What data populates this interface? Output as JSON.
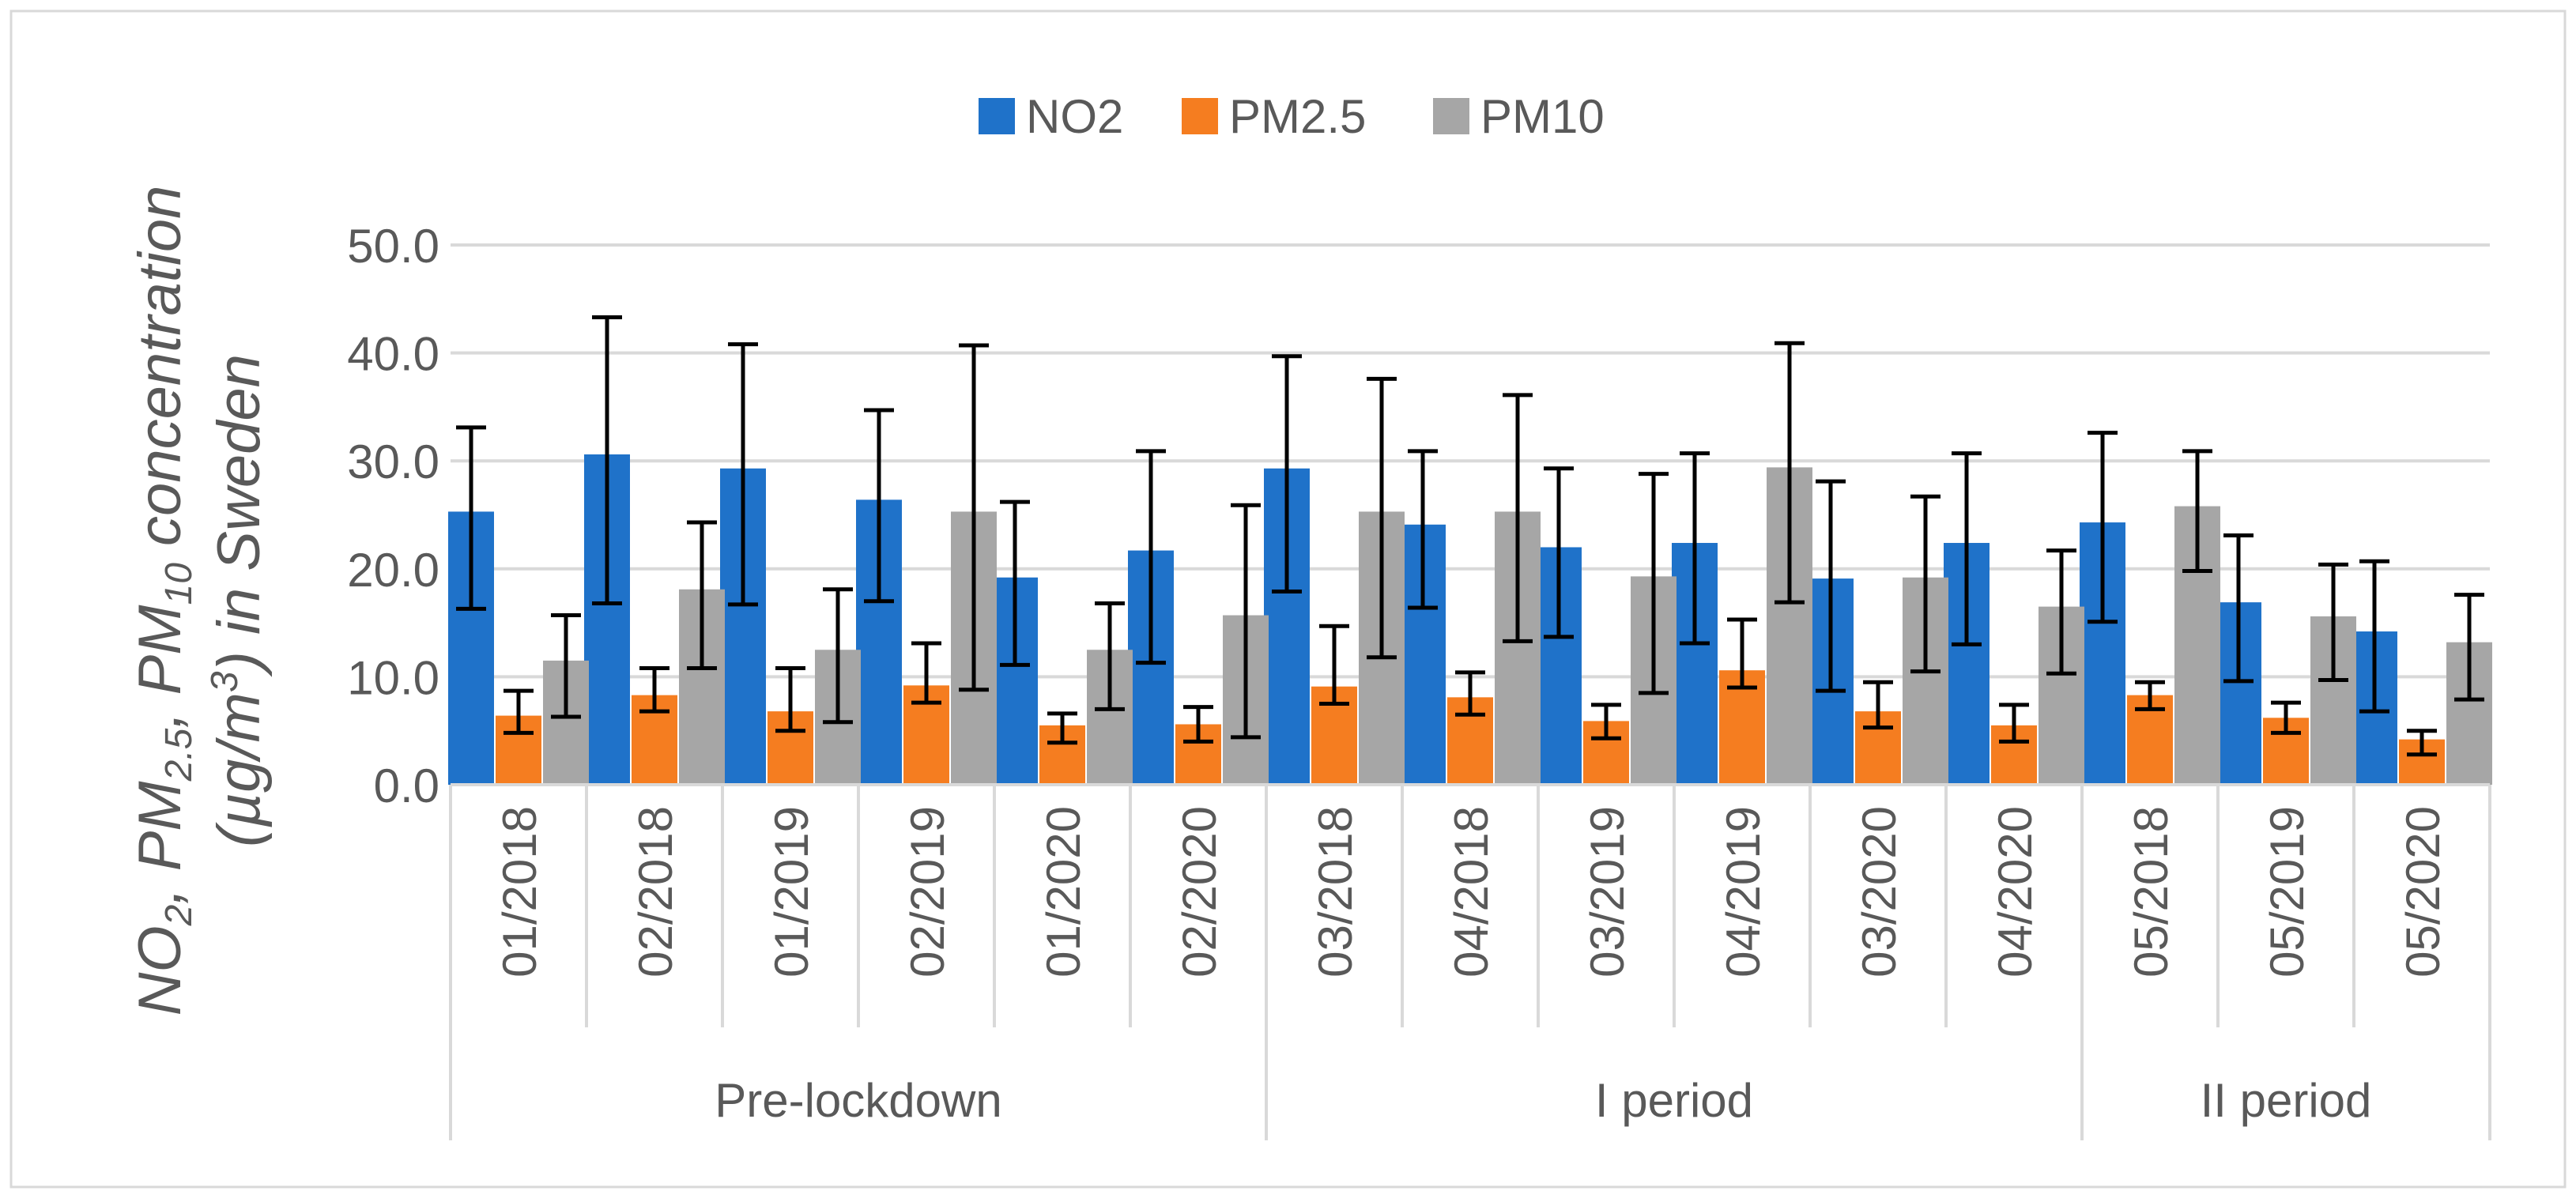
{
  "chart_data": {
    "type": "bar",
    "ylabel_parts": [
      {
        "t": "NO",
        "sub": false
      },
      {
        "t": "2",
        "sub": true
      },
      {
        "t": ", PM",
        "sub": false
      },
      {
        "t": "2.5",
        "sub": true
      },
      {
        "t": ", PM",
        "sub": false
      },
      {
        "t": "10",
        "sub": true
      },
      {
        "t": " concentration",
        "sub": false
      }
    ],
    "ylabel_line2_parts": [
      {
        "t": "(µg/m",
        "sup": false
      },
      {
        "t": "3",
        "sup": true
      },
      {
        "t": ") in Sweden",
        "sup": false
      }
    ],
    "ylim": [
      0,
      50
    ],
    "yticks": [
      "0.0",
      "10.0",
      "20.0",
      "30.0",
      "40.0",
      "50.0"
    ],
    "grid": true,
    "legend_position": "top-center",
    "categories": [
      "01/2018",
      "02/2018",
      "01/2019",
      "02/2019",
      "01/2020",
      "02/2020",
      "03/2018",
      "04/2018",
      "03/2019",
      "04/2019",
      "03/2020",
      "04/2020",
      "05/2018",
      "05/2019",
      "05/2020"
    ],
    "groups": [
      {
        "label": "Pre-lockdown",
        "count": 6
      },
      {
        "label": "I period",
        "count": 6
      },
      {
        "label": "II period",
        "count": 3
      }
    ],
    "series": [
      {
        "name": "NO2",
        "color": "#1f72c9",
        "values": [
          25.3,
          30.6,
          29.3,
          26.4,
          19.2,
          21.7,
          29.3,
          24.1,
          22.0,
          22.4,
          19.1,
          22.4,
          24.3,
          16.9,
          14.2
        ],
        "err_low": [
          16.3,
          16.8,
          16.7,
          17.0,
          11.1,
          11.3,
          17.9,
          16.4,
          13.7,
          13.1,
          8.7,
          13.0,
          15.1,
          9.6,
          6.8
        ],
        "err_high": [
          33.1,
          43.3,
          40.8,
          34.7,
          26.2,
          30.9,
          39.7,
          30.9,
          29.3,
          30.7,
          28.1,
          30.7,
          32.6,
          23.1,
          20.7
        ]
      },
      {
        "name": "PM2.5",
        "color": "#f57d20",
        "values": [
          6.4,
          8.3,
          6.8,
          9.2,
          5.5,
          5.6,
          9.1,
          8.1,
          5.9,
          10.6,
          6.8,
          5.5,
          8.3,
          6.2,
          4.2
        ],
        "err_low": [
          4.8,
          6.8,
          5.0,
          7.6,
          3.9,
          4.0,
          7.5,
          6.5,
          4.3,
          9.0,
          5.3,
          4.0,
          7.0,
          4.8,
          2.8
        ],
        "err_high": [
          8.7,
          10.8,
          10.8,
          13.1,
          6.6,
          7.2,
          14.7,
          10.4,
          7.4,
          15.3,
          9.5,
          7.4,
          9.5,
          7.6,
          5.0
        ]
      },
      {
        "name": "PM10",
        "color": "#a6a6a6",
        "values": [
          11.5,
          18.1,
          12.5,
          25.3,
          12.5,
          15.7,
          25.3,
          25.3,
          19.3,
          29.4,
          19.2,
          16.5,
          25.8,
          15.6,
          13.2
        ],
        "err_low": [
          6.3,
          10.8,
          5.8,
          8.8,
          7.0,
          4.4,
          11.8,
          13.3,
          8.5,
          16.9,
          10.5,
          10.3,
          19.8,
          9.7,
          7.9
        ],
        "err_high": [
          15.7,
          24.3,
          18.1,
          40.7,
          16.8,
          25.9,
          37.6,
          36.1,
          28.8,
          40.9,
          26.7,
          21.7,
          30.9,
          20.4,
          17.6
        ]
      }
    ]
  }
}
